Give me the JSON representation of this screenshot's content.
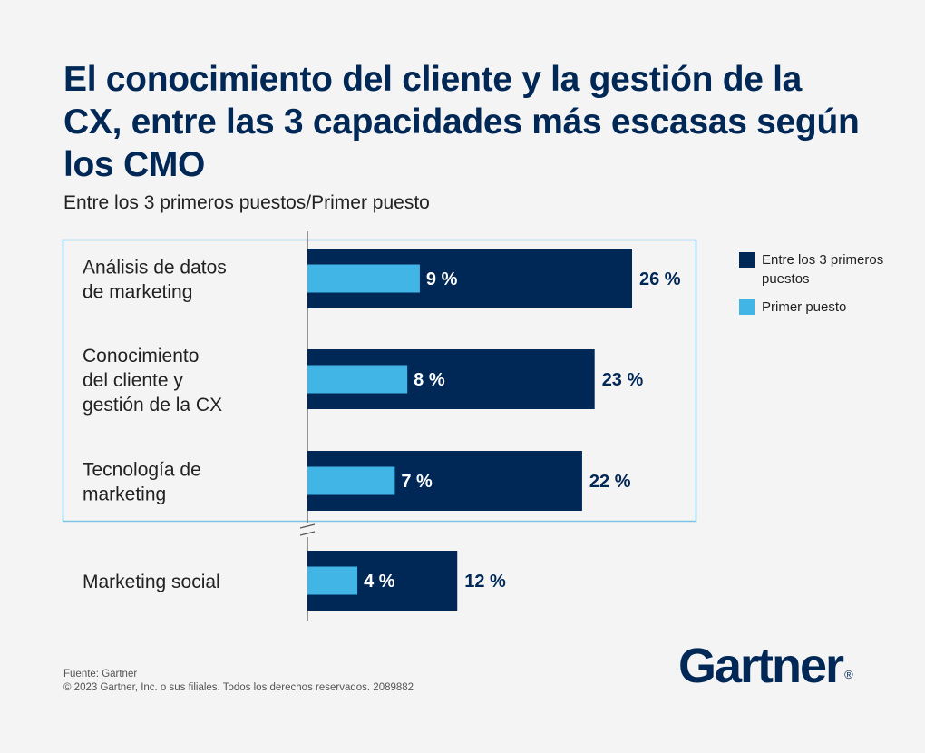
{
  "chart_data": {
    "type": "bar",
    "orientation": "horizontal",
    "title": "El conocimiento del cliente y la gestión de la CX, entre las 3 capacidades más escasas según los CMO",
    "subtitle": "Entre los 3 primeros puestos/Primer puesto",
    "categories": [
      [
        "Análisis de datos",
        "de marketing"
      ],
      [
        "Conocimiento",
        "del cliente y",
        "gestión de la CX"
      ],
      [
        "Tecnología de",
        "marketing"
      ],
      [
        "Marketing social"
      ]
    ],
    "series": [
      {
        "name": "Entre los 3 primeros puestos",
        "color": "#002856",
        "values": [
          26,
          23,
          22,
          12
        ],
        "labels": [
          "26 %",
          "23 %",
          "22 %",
          "12 %"
        ]
      },
      {
        "name": "Primer puesto",
        "color": "#41b6e6",
        "values": [
          9,
          8,
          7,
          4
        ],
        "labels": [
          "9 %",
          "8 %",
          "7 %",
          "4 %"
        ]
      }
    ],
    "xlim": [
      0,
      30
    ],
    "grid": false,
    "legend": "right",
    "highlighted_categories": [
      0,
      1,
      2
    ],
    "axis_break": "between category 3 and 4"
  },
  "legend": [
    {
      "label": "Entre los 3 primeros puestos",
      "color": "#002856"
    },
    {
      "label": "Primer puesto",
      "color": "#41b6e6"
    }
  ],
  "source": {
    "line1": "Fuente: Gartner",
    "line2": "© 2023 Gartner, Inc. o sus filiales. Todos los derechos reservados. 2089882"
  },
  "logo": {
    "text": "Gartner",
    "mark": "®"
  },
  "colors": {
    "navy": "#002856",
    "light_blue": "#41b6e6",
    "highlight_border": "#7fc3e3"
  }
}
